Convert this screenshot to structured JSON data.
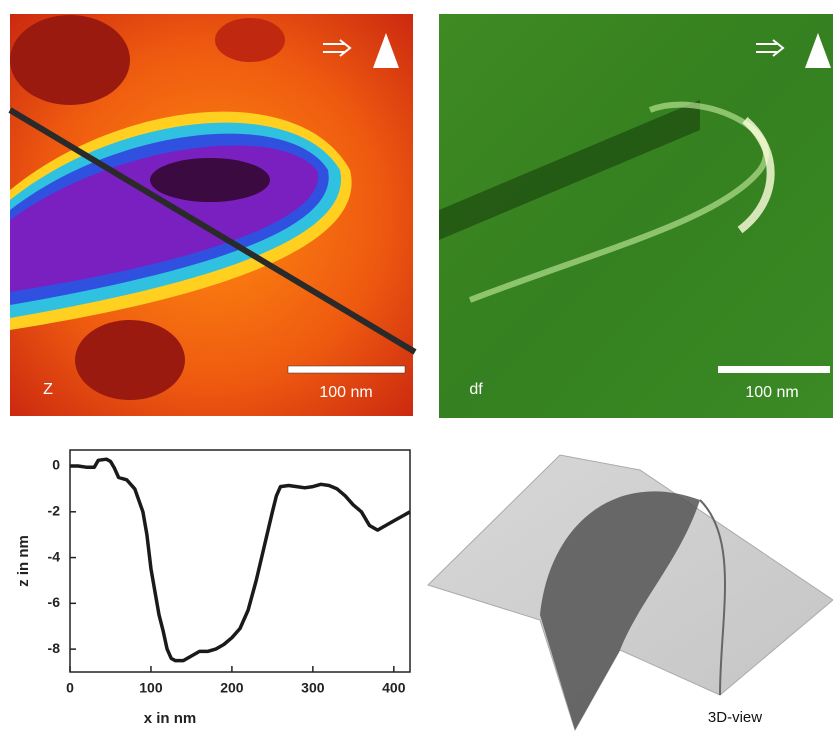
{
  "chart_data": {
    "type": "line",
    "x_label": "x in nm",
    "y_label": "z in nm",
    "x": [
      0,
      10,
      20,
      30,
      35,
      45,
      50,
      55,
      60,
      70,
      80,
      90,
      95,
      100,
      105,
      110,
      115,
      120,
      125,
      130,
      140,
      150,
      160,
      170,
      180,
      190,
      200,
      210,
      220,
      230,
      240,
      250,
      255,
      260,
      270,
      280,
      290,
      300,
      310,
      320,
      330,
      340,
      350,
      360,
      370,
      380,
      390,
      400,
      410,
      420
    ],
    "values": [
      0,
      0,
      -0.05,
      -0.05,
      0.25,
      0.3,
      0.2,
      -0.1,
      -0.5,
      -0.6,
      -1.0,
      -2.0,
      -3.0,
      -4.5,
      -5.5,
      -6.5,
      -7.2,
      -8.0,
      -8.4,
      -8.5,
      -8.5,
      -8.3,
      -8.1,
      -8.1,
      -8.0,
      -7.8,
      -7.5,
      -7.1,
      -6.3,
      -5.0,
      -3.5,
      -2.0,
      -1.3,
      -0.9,
      -0.85,
      -0.9,
      -0.95,
      -0.9,
      -0.8,
      -0.85,
      -1.0,
      -1.3,
      -1.7,
      -2.0,
      -2.6,
      -2.8,
      -2.6,
      -2.4,
      -2.2,
      -2.0
    ],
    "color": "#1a1a1a",
    "xlim": [
      0,
      420
    ],
    "ylim": [
      -9,
      0.7
    ],
    "xticks": [
      0,
      100,
      200,
      300,
      400
    ],
    "yticks": [
      0,
      -2,
      -4,
      -6,
      -8
    ]
  },
  "panels": {
    "topography": {
      "label": "Z",
      "scale_bar": "100 nm"
    },
    "frequency_shift": {
      "label": "df",
      "scale_bar": "100 nm"
    },
    "three_d": {
      "label": "3D-view"
    }
  }
}
